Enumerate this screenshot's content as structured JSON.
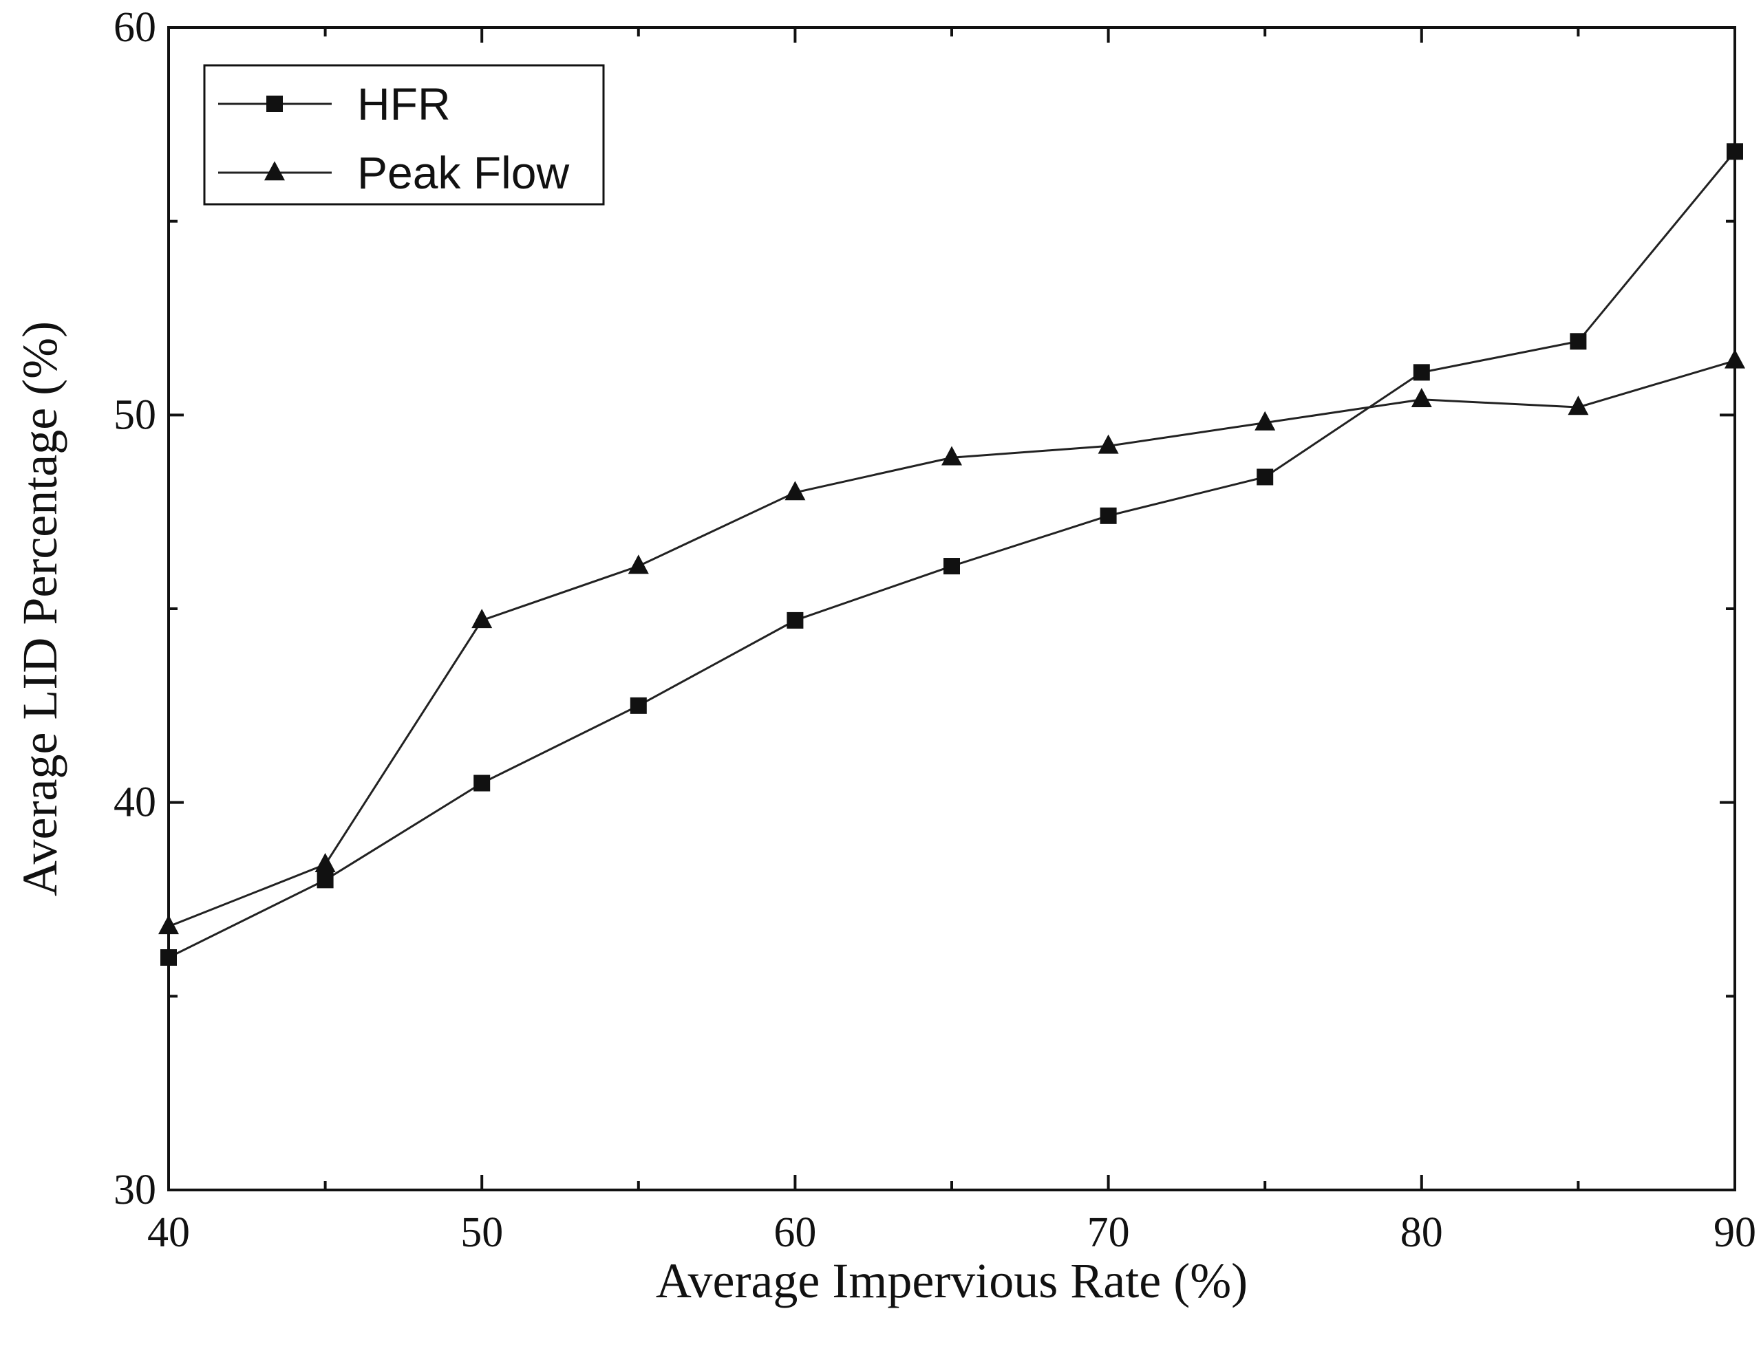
{
  "chart_data": {
    "type": "line",
    "title": "",
    "xlabel": "Average Impervious Rate (%)",
    "ylabel": "Average LID Percentage (%)",
    "xlim": [
      40,
      90
    ],
    "ylim": [
      30,
      60
    ],
    "xticks": [
      40,
      50,
      60,
      70,
      80,
      90
    ],
    "yticks": [
      30,
      40,
      50,
      60
    ],
    "x_minor_step": 5,
    "y_minor_step": 5,
    "x": [
      40,
      45,
      50,
      55,
      60,
      65,
      70,
      75,
      80,
      85,
      90
    ],
    "series": [
      {
        "name": "HFR",
        "marker": "square",
        "values": [
          36.0,
          38.0,
          40.5,
          42.5,
          44.7,
          46.1,
          47.4,
          48.4,
          51.1,
          51.9,
          56.8
        ]
      },
      {
        "name": "Peak Flow",
        "marker": "triangle",
        "values": [
          36.8,
          38.4,
          44.7,
          46.1,
          48.0,
          48.9,
          49.2,
          49.8,
          50.4,
          50.2,
          51.4
        ]
      }
    ],
    "legend_position": "top-left",
    "grid": false
  }
}
